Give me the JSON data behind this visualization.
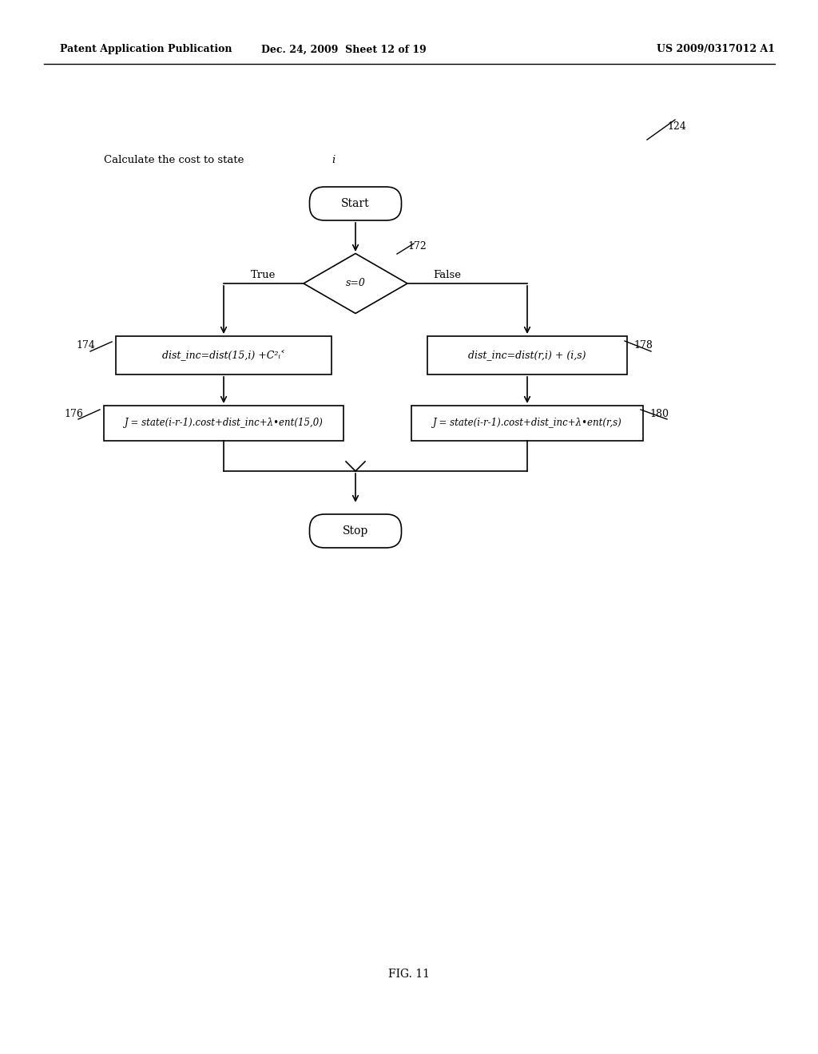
{
  "header_left": "Patent Application Publication",
  "header_mid": "Dec. 24, 2009  Sheet 12 of 19",
  "header_right": "US 2009/0317012 A1",
  "fig_label": "FIG. 11",
  "fig_number": "124",
  "start_text": "Start",
  "stop_text": "Stop",
  "diamond_text": "s=0",
  "true_label": "True",
  "false_label": "False",
  "diamond_label": "172",
  "box1_label": "174",
  "box1_text": "dist_inc=dist(15,i) +C²ᵢ˂",
  "box2_label": "178",
  "box2_text": "dist_inc=dist(r,i) + (i,s)",
  "box3_label": "176",
  "box3_text": "J = state(i-r-1).cost+dist_inc+λ•ent(15,0)",
  "box4_label": "180",
  "box4_text": "J = state(i-r-1).cost+dist_inc+λ•ent(r,s)",
  "bg_color": "#ffffff",
  "line_color": "#000000",
  "text_color": "#000000"
}
